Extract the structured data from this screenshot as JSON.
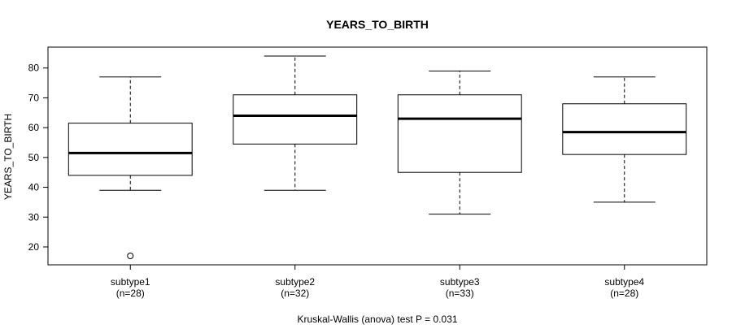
{
  "chart_data": {
    "type": "box",
    "title": "YEARS_TO_BIRTH",
    "ylabel": "YEARS_TO_BIRTH",
    "xlabel": "",
    "ylim": [
      14,
      87
    ],
    "yticks": [
      20,
      30,
      40,
      50,
      60,
      70,
      80
    ],
    "footnote": "Kruskal-Wallis (anova) test P = 0.031",
    "grid": false,
    "legend": "none",
    "categories": [
      {
        "name": "subtype1",
        "n_label": "(n=28)",
        "whisker_low": 39,
        "q1": 44,
        "median": 51.5,
        "q3": 61.5,
        "whisker_high": 77,
        "outliers": [
          17
        ]
      },
      {
        "name": "subtype2",
        "n_label": "(n=32)",
        "whisker_low": 39,
        "q1": 54.5,
        "median": 64,
        "q3": 71,
        "whisker_high": 84,
        "outliers": []
      },
      {
        "name": "subtype3",
        "n_label": "(n=33)",
        "whisker_low": 31,
        "q1": 45,
        "median": 63,
        "q3": 71,
        "whisker_high": 79,
        "outliers": []
      },
      {
        "name": "subtype4",
        "n_label": "(n=28)",
        "whisker_low": 35,
        "q1": 51,
        "median": 58.5,
        "q3": 68,
        "whisker_high": 77,
        "outliers": []
      }
    ]
  }
}
